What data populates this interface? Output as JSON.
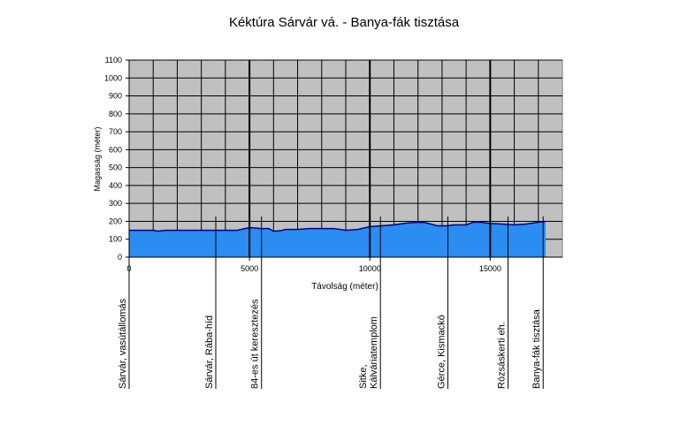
{
  "chart_data": {
    "type": "area",
    "title": "Kéktúra Sárvár vá. - Banya-fák tisztása",
    "x_label": "Távolság (méter)",
    "y_label": "Magasság (méter)",
    "x": [
      0,
      1000,
      1200,
      1500,
      3000,
      4500,
      5000,
      5500,
      5800,
      6000,
      6300,
      6500,
      7000,
      7500,
      8500,
      9000,
      9500,
      10000,
      10500,
      11000,
      11500,
      12000,
      12300,
      12800,
      13200,
      13500,
      14000,
      14300,
      14600,
      15000,
      15500,
      16000,
      16500,
      17000,
      17300
    ],
    "values": [
      150,
      150,
      145,
      150,
      150,
      150,
      165,
      160,
      160,
      145,
      148,
      155,
      155,
      160,
      160,
      150,
      155,
      170,
      175,
      180,
      190,
      195,
      193,
      175,
      175,
      180,
      180,
      195,
      195,
      188,
      185,
      180,
      185,
      195,
      200
    ],
    "color": "#2b8cf2",
    "line_color": "#000080",
    "plot_background": "#c0c0c0",
    "xlim": [
      0,
      18000
    ],
    "ylim": [
      0,
      1100
    ],
    "xticks": [
      0,
      5000,
      10000,
      15000
    ],
    "x_grid": [
      1000,
      2000,
      3000,
      4000,
      6000,
      7000,
      8000,
      9000,
      11000,
      12000,
      13000,
      14000,
      16000,
      17000
    ],
    "yticks": [
      0,
      100,
      200,
      300,
      400,
      500,
      600,
      700,
      800,
      900,
      1000,
      1100
    ],
    "grid": true,
    "places": [
      {
        "x": 0,
        "label": [
          "Sárvár, vasútállomás"
        ]
      },
      {
        "x": 3600,
        "label": [
          "Sárvár, Rába-híd"
        ]
      },
      {
        "x": 5500,
        "label": [
          "84-es út keresztezés"
        ]
      },
      {
        "x": 10440,
        "label": [
          "Sitke,",
          "Kálváriatemplom"
        ]
      },
      {
        "x": 13240,
        "label": [
          "Gérce, Kismackó"
        ]
      },
      {
        "x": 15740,
        "label": [
          "Rózsáskerti eh."
        ]
      },
      {
        "x": 17200,
        "label": [
          "Banya-fák tisztása"
        ]
      }
    ]
  }
}
